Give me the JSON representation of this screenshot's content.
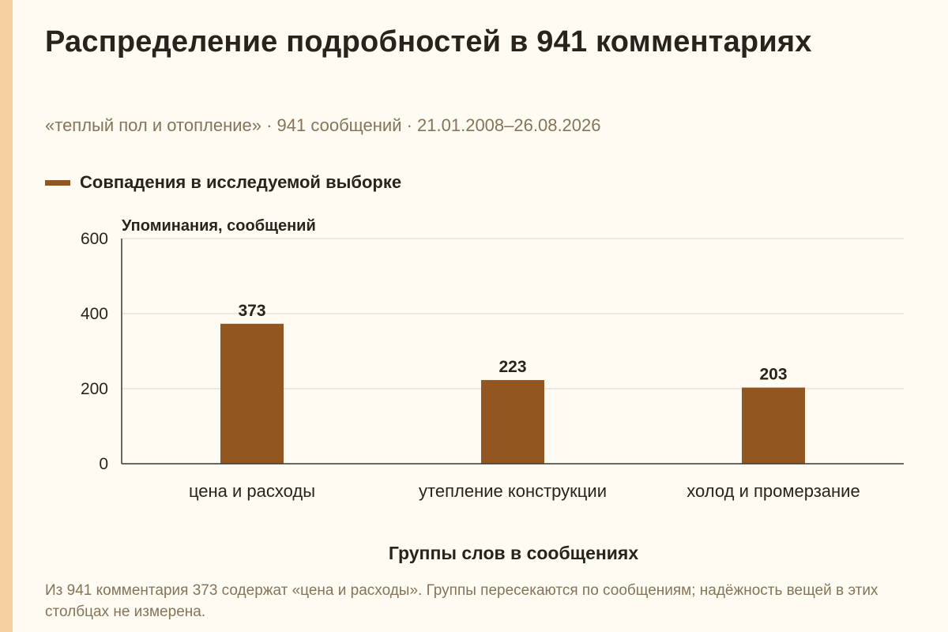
{
  "title": "Распределение подробностей в 941 комментариях",
  "subtitle": "«теплый пол и отопление» · 941 сообщений · 21.01.2008–26.08.2026",
  "legend": {
    "label": "Совпадения в исследуемой выборке"
  },
  "footnote": "Из 941 комментария 373 содержат «цена и расходы». Группы пересекаются по сообщениям; надёжность вещей в этих столбцах не измерена.",
  "colors": {
    "bar": "#925620",
    "accent_strip": "#f5cfa0",
    "grid": "#d9d6cc",
    "axis": "#3a3833",
    "text": "#26241d"
  },
  "chart_data": {
    "type": "bar",
    "categories": [
      "цена и расходы",
      "утепление конструкции",
      "холод и промерзание"
    ],
    "series": [
      {
        "name": "Совпадения в исследуемой выборке",
        "values": [
          373,
          223,
          203
        ]
      }
    ],
    "data_labels": [
      "373",
      "223",
      "203"
    ],
    "ylabel": "Упоминания, сообщений",
    "xlabel": "Группы слов в сообщениях",
    "ylim": [
      0,
      600
    ],
    "yticks": [
      0,
      200,
      400,
      600
    ],
    "grid": true,
    "legend_position": "top-left"
  }
}
